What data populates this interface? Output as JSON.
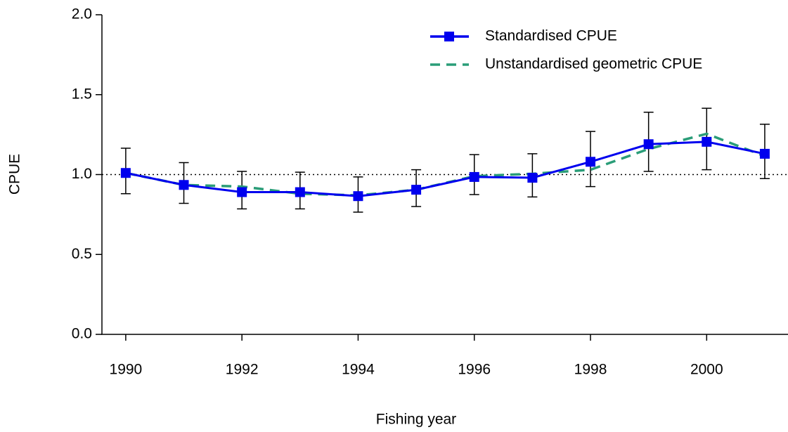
{
  "chart_data": {
    "type": "line",
    "xlabel": "Fishing year",
    "ylabel": "CPUE",
    "x": [
      1990,
      1991,
      1992,
      1993,
      1994,
      1995,
      1996,
      1997,
      1998,
      1999,
      2000,
      2001
    ],
    "series": [
      {
        "name": "Standardised CPUE",
        "color": "#0000ee",
        "style": "solid",
        "marker": "square",
        "values": [
          1.01,
          0.935,
          0.89,
          0.89,
          0.865,
          0.905,
          0.985,
          0.98,
          1.08,
          1.19,
          1.205,
          1.13
        ],
        "lower": [
          0.88,
          0.82,
          0.785,
          0.785,
          0.765,
          0.8,
          0.875,
          0.86,
          0.925,
          1.02,
          1.03,
          0.975
        ],
        "upper": [
          1.165,
          1.075,
          1.02,
          1.015,
          0.985,
          1.03,
          1.125,
          1.13,
          1.27,
          1.39,
          1.415,
          1.315
        ]
      },
      {
        "name": "Unstandardised geometric CPUE",
        "color": "#2a9d78",
        "style": "dashed",
        "values": [
          1.01,
          0.935,
          0.925,
          0.88,
          0.87,
          0.905,
          0.99,
          1.005,
          1.03,
          1.16,
          1.255,
          1.115
        ]
      }
    ],
    "hline": 1,
    "xlim": [
      1989.59,
      2001.4
    ],
    "xticks": [
      1990,
      1992,
      1994,
      1996,
      1998,
      2000
    ],
    "ylim": [
      0,
      2
    ],
    "yticks": [
      {
        "value": 0,
        "label": "0.0"
      },
      {
        "value": 0.5,
        "label": "0.5"
      },
      {
        "value": 1,
        "label": "1.0"
      },
      {
        "value": 1.5,
        "label": "1.5"
      },
      {
        "value": 2,
        "label": "2.0"
      }
    ],
    "legend": "top-right"
  }
}
